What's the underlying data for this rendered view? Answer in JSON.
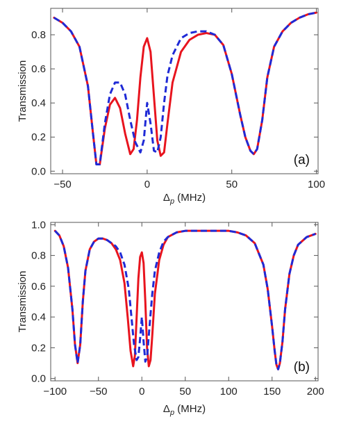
{
  "colors": {
    "solid": "#e8141e",
    "dashed": "#1f2ad6",
    "frame": "#555555",
    "text": "#222222"
  },
  "chart_data": [
    {
      "type": "line",
      "panel_label": "(a)",
      "xlabel_main": "Δ",
      "xlabel_sub": "p",
      "xlabel_unit": " (MHz)",
      "ylabel": "Transmission",
      "xlim": [
        -57,
        101
      ],
      "ylim": [
        -0.015,
        0.955
      ],
      "xticks": [
        -50,
        0,
        50,
        100
      ],
      "xtick_labels": [
        "−50",
        "0",
        "50",
        "100"
      ],
      "yticks": [
        0.0,
        0.2,
        0.4,
        0.6,
        0.8
      ],
      "ytick_labels": [
        "0.0",
        "0.2",
        "0.4",
        "0.6",
        "0.8"
      ],
      "legend": "none",
      "grid": false,
      "series": [
        {
          "style": "solid",
          "x": [
            -55,
            -50,
            -45,
            -40,
            -35,
            -32,
            -30,
            -28,
            -25,
            -22,
            -19,
            -16,
            -13,
            -10,
            -8,
            -6,
            -4,
            -2,
            0,
            2,
            4,
            6,
            8,
            10,
            12,
            15,
            20,
            25,
            30,
            35,
            40,
            45,
            50,
            55,
            58,
            61,
            63,
            65,
            68,
            71,
            75,
            80,
            85,
            90,
            95,
            100
          ],
          "y": [
            0.9,
            0.87,
            0.82,
            0.73,
            0.5,
            0.22,
            0.04,
            0.04,
            0.25,
            0.39,
            0.43,
            0.37,
            0.22,
            0.1,
            0.13,
            0.3,
            0.55,
            0.73,
            0.78,
            0.7,
            0.44,
            0.18,
            0.09,
            0.11,
            0.28,
            0.52,
            0.7,
            0.77,
            0.8,
            0.81,
            0.8,
            0.74,
            0.57,
            0.33,
            0.2,
            0.12,
            0.1,
            0.13,
            0.3,
            0.55,
            0.73,
            0.82,
            0.87,
            0.9,
            0.92,
            0.93
          ]
        },
        {
          "style": "dashed",
          "x": [
            -55,
            -50,
            -45,
            -40,
            -35,
            -32,
            -30,
            -28,
            -25,
            -22,
            -19,
            -16,
            -13,
            -10,
            -7,
            -4,
            -2,
            0,
            2,
            4,
            6,
            8,
            10,
            12,
            15,
            20,
            25,
            30,
            35,
            40,
            45,
            50,
            55,
            58,
            61,
            63,
            65,
            68,
            71,
            75,
            80,
            85,
            90,
            95,
            100
          ],
          "y": [
            0.9,
            0.87,
            0.82,
            0.73,
            0.5,
            0.22,
            0.04,
            0.04,
            0.28,
            0.45,
            0.52,
            0.52,
            0.45,
            0.3,
            0.17,
            0.11,
            0.18,
            0.4,
            0.28,
            0.12,
            0.11,
            0.2,
            0.4,
            0.56,
            0.68,
            0.78,
            0.81,
            0.82,
            0.82,
            0.8,
            0.74,
            0.57,
            0.33,
            0.2,
            0.12,
            0.1,
            0.13,
            0.3,
            0.55,
            0.73,
            0.82,
            0.87,
            0.9,
            0.92,
            0.93
          ]
        }
      ]
    },
    {
      "type": "line",
      "panel_label": "(b)",
      "xlabel_main": "Δ",
      "xlabel_sub": "p",
      "xlabel_unit": " (MHz)",
      "ylabel": "Transmission",
      "xlim": [
        -105,
        203
      ],
      "ylim": [
        -0.015,
        1.015
      ],
      "xticks": [
        -100,
        -50,
        0,
        50,
        100,
        150,
        200
      ],
      "xtick_labels": [
        "−100",
        "−50",
        "0",
        "50",
        "100",
        "150",
        "200"
      ],
      "yticks": [
        0.0,
        0.2,
        0.4,
        0.6,
        0.8,
        1.0
      ],
      "ytick_labels": [
        "0.0",
        "0.2",
        "0.4",
        "0.6",
        "0.8",
        "1.0"
      ],
      "legend": "none",
      "grid": false,
      "series": [
        {
          "style": "solid",
          "x": [
            -100,
            -95,
            -90,
            -85,
            -80,
            -77,
            -74,
            -71,
            -68,
            -65,
            -60,
            -55,
            -50,
            -45,
            -40,
            -35,
            -30,
            -25,
            -20,
            -16,
            -13,
            -10,
            -8,
            -6,
            -4,
            -2,
            0,
            2,
            4,
            6,
            8,
            10,
            12,
            15,
            20,
            25,
            30,
            40,
            50,
            60,
            70,
            80,
            90,
            100,
            110,
            120,
            130,
            140,
            145,
            150,
            153,
            155,
            157,
            159,
            162,
            165,
            170,
            175,
            180,
            190,
            200
          ],
          "y": [
            0.96,
            0.93,
            0.86,
            0.72,
            0.45,
            0.22,
            0.1,
            0.22,
            0.5,
            0.7,
            0.84,
            0.89,
            0.91,
            0.91,
            0.9,
            0.88,
            0.84,
            0.77,
            0.62,
            0.38,
            0.18,
            0.08,
            0.15,
            0.4,
            0.65,
            0.79,
            0.82,
            0.75,
            0.5,
            0.2,
            0.08,
            0.12,
            0.28,
            0.55,
            0.77,
            0.87,
            0.92,
            0.95,
            0.96,
            0.96,
            0.96,
            0.96,
            0.96,
            0.96,
            0.95,
            0.93,
            0.88,
            0.74,
            0.58,
            0.34,
            0.18,
            0.09,
            0.06,
            0.1,
            0.24,
            0.45,
            0.68,
            0.8,
            0.87,
            0.92,
            0.94
          ]
        },
        {
          "style": "dashed",
          "x": [
            -100,
            -95,
            -90,
            -85,
            -80,
            -77,
            -74,
            -71,
            -68,
            -65,
            -60,
            -55,
            -50,
            -45,
            -40,
            -35,
            -30,
            -25,
            -20,
            -15,
            -12,
            -9,
            -6,
            -4,
            -2,
            0,
            2,
            4,
            6,
            9,
            12,
            15,
            20,
            25,
            30,
            40,
            50,
            60,
            70,
            80,
            90,
            100,
            110,
            120,
            130,
            140,
            145,
            150,
            153,
            155,
            157,
            159,
            162,
            165,
            170,
            175,
            180,
            190,
            200
          ],
          "y": [
            0.96,
            0.93,
            0.86,
            0.72,
            0.45,
            0.22,
            0.1,
            0.22,
            0.5,
            0.7,
            0.84,
            0.89,
            0.91,
            0.91,
            0.9,
            0.88,
            0.86,
            0.82,
            0.74,
            0.58,
            0.4,
            0.22,
            0.12,
            0.14,
            0.26,
            0.4,
            0.24,
            0.11,
            0.14,
            0.35,
            0.55,
            0.7,
            0.82,
            0.89,
            0.92,
            0.95,
            0.96,
            0.96,
            0.96,
            0.96,
            0.96,
            0.96,
            0.95,
            0.93,
            0.88,
            0.74,
            0.58,
            0.34,
            0.18,
            0.09,
            0.06,
            0.1,
            0.24,
            0.45,
            0.68,
            0.8,
            0.87,
            0.92,
            0.94
          ]
        }
      ]
    }
  ]
}
